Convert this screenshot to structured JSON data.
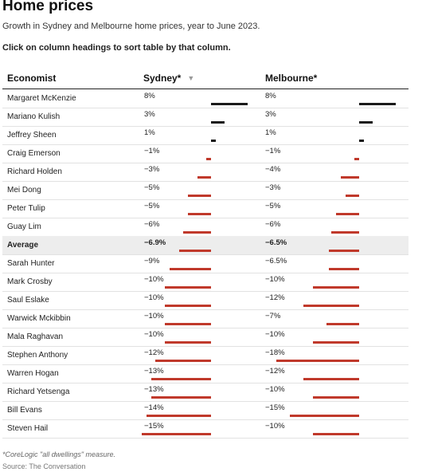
{
  "header": {
    "title": "Home prices",
    "subtitle": "Growth in Sydney and Melbourne home prices, year to June 2023.",
    "instruction": "Click on column headings to sort table by that column."
  },
  "table": {
    "columns": {
      "economist": "Economist",
      "sydney": "Sydney*",
      "melbourne": "Melbourne*",
      "sort_indicator": "▼"
    },
    "rows": [
      {
        "name": "Margaret McKenzie",
        "sydney": "8%",
        "melbourne": "8%",
        "syd_value": 8,
        "mel_value": 8
      },
      {
        "name": "Mariano Kulish",
        "sydney": "3%",
        "melbourne": "3%",
        "syd_value": 3,
        "mel_value": 3
      },
      {
        "name": "Jeffrey Sheen",
        "sydney": "1%",
        "melbourne": "1%",
        "syd_value": 1,
        "mel_value": 1
      },
      {
        "name": "Craig Emerson",
        "sydney": "−1%",
        "melbourne": "−1%",
        "syd_value": -1,
        "mel_value": -1
      },
      {
        "name": "Richard Holden",
        "sydney": "−3%",
        "melbourne": "−4%",
        "syd_value": -3,
        "mel_value": -4
      },
      {
        "name": "Mei Dong",
        "sydney": "−5%",
        "melbourne": "−3%",
        "syd_value": -5,
        "mel_value": -3
      },
      {
        "name": "Peter Tulip",
        "sydney": "−5%",
        "melbourne": "−5%",
        "syd_value": -5,
        "mel_value": -5
      },
      {
        "name": "Guay Lim",
        "sydney": "−6%",
        "melbourne": "−6%",
        "syd_value": -6,
        "mel_value": -6
      },
      {
        "name": "Average",
        "sydney": "−6.9%",
        "melbourne": "−6.5%",
        "syd_value": -6.9,
        "mel_value": -6.5,
        "is_average": true
      },
      {
        "name": "Sarah Hunter",
        "sydney": "−9%",
        "melbourne": "−6.5%",
        "syd_value": -9,
        "mel_value": -6.5
      },
      {
        "name": "Mark Crosby",
        "sydney": "−10%",
        "melbourne": "−10%",
        "syd_value": -10,
        "mel_value": -10
      },
      {
        "name": "Saul Eslake",
        "sydney": "−10%",
        "melbourne": "−12%",
        "syd_value": -10,
        "mel_value": -12
      },
      {
        "name": "Warwick Mckibbin",
        "sydney": "−10%",
        "melbourne": "−7%",
        "syd_value": -10,
        "mel_value": -7
      },
      {
        "name": "Mala Raghavan",
        "sydney": "−10%",
        "melbourne": "−10%",
        "syd_value": -10,
        "mel_value": -10
      },
      {
        "name": "Stephen Anthony",
        "sydney": "−12%",
        "melbourne": "−18%",
        "syd_value": -12,
        "mel_value": -18
      },
      {
        "name": "Warren Hogan",
        "sydney": "−13%",
        "melbourne": "−12%",
        "syd_value": -13,
        "mel_value": -12
      },
      {
        "name": "Richard Yetsenga",
        "sydney": "−13%",
        "melbourne": "−10%",
        "syd_value": -13,
        "mel_value": -10
      },
      {
        "name": "Bill Evans",
        "sydney": "−14%",
        "melbourne": "−15%",
        "syd_value": -14,
        "mel_value": -15
      },
      {
        "name": "Steven Hail",
        "sydney": "−15%",
        "melbourne": "−10%",
        "syd_value": -15,
        "mel_value": -10
      }
    ]
  },
  "footer": {
    "note": "*CoreLogic \"all dwellings\" measure.",
    "source": "Source: The Conversation"
  },
  "colors": {
    "positive_bar": "#1a1a1a",
    "negative_bar": "#c0392b"
  }
}
